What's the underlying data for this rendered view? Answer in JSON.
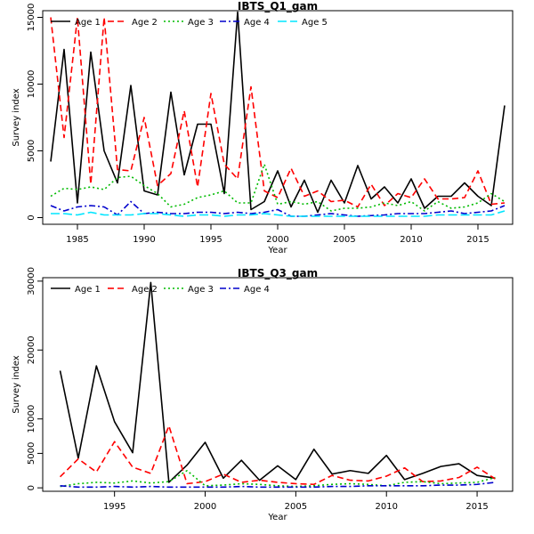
{
  "chart_data": [
    {
      "type": "line",
      "title": "IBTS_Q1_gam",
      "xlabel": "Year",
      "ylabel": "Survey index",
      "xlim": [
        1982.4,
        2017.6
      ],
      "ylim": [
        -500,
        15500
      ],
      "xticks": [
        1985,
        1990,
        1995,
        2000,
        2005,
        2010,
        2015
      ],
      "yticks": [
        0,
        5000,
        10000,
        15000
      ],
      "legend_position": "top",
      "x": [
        1983,
        1984,
        1985,
        1986,
        1987,
        1988,
        1989,
        1990,
        1991,
        1992,
        1993,
        1994,
        1995,
        1996,
        1997,
        1998,
        1999,
        2000,
        2001,
        2002,
        2003,
        2004,
        2005,
        2006,
        2007,
        2008,
        2009,
        2010,
        2011,
        2012,
        2013,
        2014,
        2015,
        2016,
        2017
      ],
      "series": [
        {
          "name": "Age 1",
          "color": "#000000",
          "dash": "solid",
          "values": [
            4200,
            12600,
            1100,
            12400,
            5000,
            2600,
            9900,
            2000,
            1700,
            9400,
            3200,
            7000,
            7000,
            1800,
            15400,
            600,
            1200,
            3500,
            800,
            2800,
            400,
            2800,
            1100,
            3900,
            1400,
            2300,
            1100,
            2900,
            700,
            1600,
            1600,
            2600,
            1600,
            900,
            8400
          ]
        },
        {
          "name": "Age 2",
          "color": "#ff0000",
          "dash": "dashed",
          "values": [
            15000,
            6000,
            15000,
            2500,
            15000,
            3600,
            3500,
            7500,
            2400,
            3300,
            8000,
            2300,
            9300,
            4000,
            2900,
            9800,
            2000,
            1500,
            3700,
            1600,
            2000,
            1200,
            1300,
            800,
            2500,
            900,
            1800,
            1500,
            2900,
            1400,
            1400,
            1500,
            3500,
            1000,
            1100
          ]
        },
        {
          "name": "Age 3",
          "color": "#00bb00",
          "dash": "dotted",
          "values": [
            1600,
            2200,
            2100,
            2300,
            2100,
            3000,
            3100,
            2400,
            1800,
            800,
            1000,
            1500,
            1700,
            2000,
            1100,
            1100,
            4000,
            1000,
            1200,
            1000,
            1200,
            500,
            700,
            700,
            800,
            1100,
            900,
            1200,
            500,
            1200,
            700,
            800,
            1100,
            1800,
            1200
          ]
        },
        {
          "name": "Age 4",
          "color": "#0000cc",
          "dash": "dashdot",
          "values": [
            900,
            500,
            800,
            900,
            800,
            200,
            1200,
            300,
            400,
            300,
            300,
            400,
            400,
            300,
            400,
            300,
            400,
            600,
            100,
            100,
            200,
            300,
            200,
            100,
            150,
            200,
            300,
            300,
            300,
            400,
            500,
            300,
            400,
            500,
            900
          ]
        },
        {
          "name": "Age 5",
          "color": "#00e5ff",
          "dash": "longdash",
          "values": [
            300,
            300,
            200,
            400,
            200,
            200,
            200,
            300,
            300,
            200,
            100,
            200,
            200,
            100,
            200,
            200,
            300,
            200,
            100,
            100,
            100,
            100,
            100,
            100,
            100,
            100,
            100,
            100,
            100,
            200,
            200,
            200,
            200,
            200,
            500
          ]
        }
      ]
    },
    {
      "type": "line",
      "title": "IBTS_Q3_gam",
      "xlabel": "Year",
      "ylabel": "Survey index",
      "xlim": [
        1991.04,
        2016.96
      ],
      "ylim": [
        -500,
        30500
      ],
      "xticks": [
        1995,
        2000,
        2005,
        2010,
        2015
      ],
      "yticks": [
        0,
        5000,
        10000,
        20000,
        30000
      ],
      "legend_position": "top",
      "x": [
        1992,
        1993,
        1994,
        1995,
        1996,
        1997,
        1998,
        1999,
        2000,
        2001,
        2002,
        2003,
        2004,
        2005,
        2006,
        2007,
        2008,
        2009,
        2010,
        2011,
        2012,
        2013,
        2014,
        2015,
        2016
      ],
      "series": [
        {
          "name": "Age 1",
          "color": "#000000",
          "dash": "solid",
          "values": [
            17000,
            4300,
            17700,
            9600,
            5100,
            29800,
            800,
            3300,
            6600,
            1400,
            4000,
            1100,
            3200,
            1200,
            5600,
            2000,
            2500,
            2100,
            4700,
            1200,
            2100,
            3100,
            3500,
            1800,
            1400
          ]
        },
        {
          "name": "Age 2",
          "color": "#ff0000",
          "dash": "dashed",
          "values": [
            1600,
            4200,
            2300,
            6700,
            3000,
            2100,
            9000,
            600,
            900,
            2000,
            800,
            1100,
            800,
            600,
            500,
            1800,
            1100,
            1000,
            1700,
            2900,
            900,
            1000,
            1500,
            3000,
            1300
          ]
        },
        {
          "name": "Age 3",
          "color": "#00bb00",
          "dash": "dotted",
          "values": [
            200,
            600,
            800,
            700,
            1000,
            700,
            900,
            2500,
            300,
            400,
            600,
            500,
            300,
            200,
            300,
            500,
            600,
            500,
            300,
            800,
            900,
            600,
            700,
            800,
            1500
          ]
        },
        {
          "name": "Age 4",
          "color": "#0000cc",
          "dash": "dashdot",
          "values": [
            300,
            100,
            100,
            200,
            100,
            200,
            100,
            100,
            100,
            100,
            200,
            100,
            100,
            100,
            100,
            200,
            200,
            300,
            300,
            300,
            300,
            400,
            400,
            500,
            800
          ]
        }
      ]
    }
  ]
}
